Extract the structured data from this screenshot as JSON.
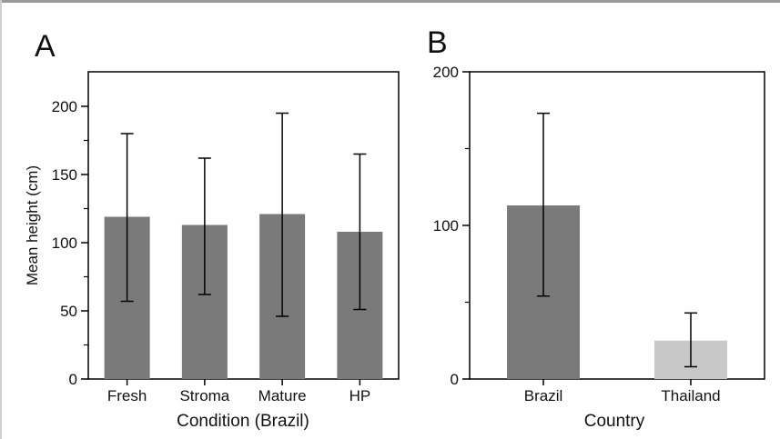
{
  "chart_data": [
    {
      "panel_label": "A",
      "type": "bar",
      "categories": [
        "Fresh",
        "Stroma",
        "Mature",
        "HP"
      ],
      "values": [
        119,
        113,
        121,
        108
      ],
      "error_low": [
        57,
        62,
        46,
        51
      ],
      "error_high": [
        180,
        162,
        195,
        165
      ],
      "xlabel": "Condition (Brazil)",
      "ylabel": "Mean height (cm)",
      "ylim": [
        0,
        225
      ],
      "yticks": [
        0,
        50,
        100,
        150,
        200
      ],
      "grid": false,
      "bar_color": "#7a7a7a"
    },
    {
      "panel_label": "B",
      "type": "bar",
      "categories": [
        "Brazil",
        "Thailand"
      ],
      "values": [
        113,
        25
      ],
      "error_low": [
        54,
        8
      ],
      "error_high": [
        173,
        43
      ],
      "xlabel": "Country",
      "ylabel": "",
      "ylim": [
        0,
        200
      ],
      "yticks": [
        0,
        100,
        200
      ],
      "grid": false,
      "bar_colors": [
        "#7a7a7a",
        "#c8c8c8"
      ]
    }
  ]
}
